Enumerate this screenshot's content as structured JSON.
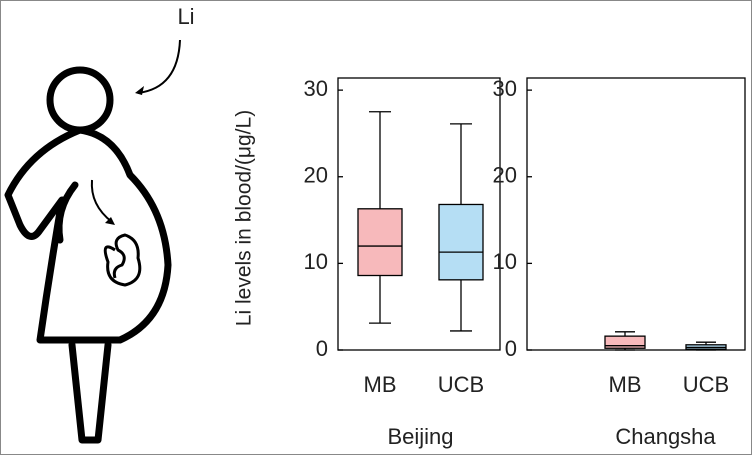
{
  "illustration": {
    "label": "Li"
  },
  "chart_data": [
    {
      "type": "box",
      "xlabel": "Beijing",
      "ylabel": "Li levels in blood/(μg/L)",
      "categories": [
        "MB",
        "UCB"
      ],
      "colors": [
        "#f7b9bb",
        "#b5def4"
      ],
      "whislo": [
        3.1,
        2.2
      ],
      "q1": [
        8.6,
        8.1
      ],
      "med": [
        12.0,
        11.3
      ],
      "q3": [
        16.3,
        16.8
      ],
      "whishi": [
        27.5,
        26.1
      ],
      "ylim": [
        0,
        31.4
      ],
      "yticks": [
        0,
        10,
        20,
        30
      ]
    },
    {
      "type": "box",
      "xlabel": "Changsha",
      "categories": [
        "MB",
        "UCB"
      ],
      "colors": [
        "#f7b9bb",
        "#b5def4"
      ],
      "whislo": [
        0,
        0
      ],
      "q1": [
        0.2,
        0.1
      ],
      "med": [
        0.5,
        0.3
      ],
      "q3": [
        1.6,
        0.6
      ],
      "whishi": [
        2.1,
        0.9
      ],
      "ylim": [
        0,
        31.4
      ],
      "yticks": [
        0,
        10,
        20,
        30
      ]
    }
  ]
}
